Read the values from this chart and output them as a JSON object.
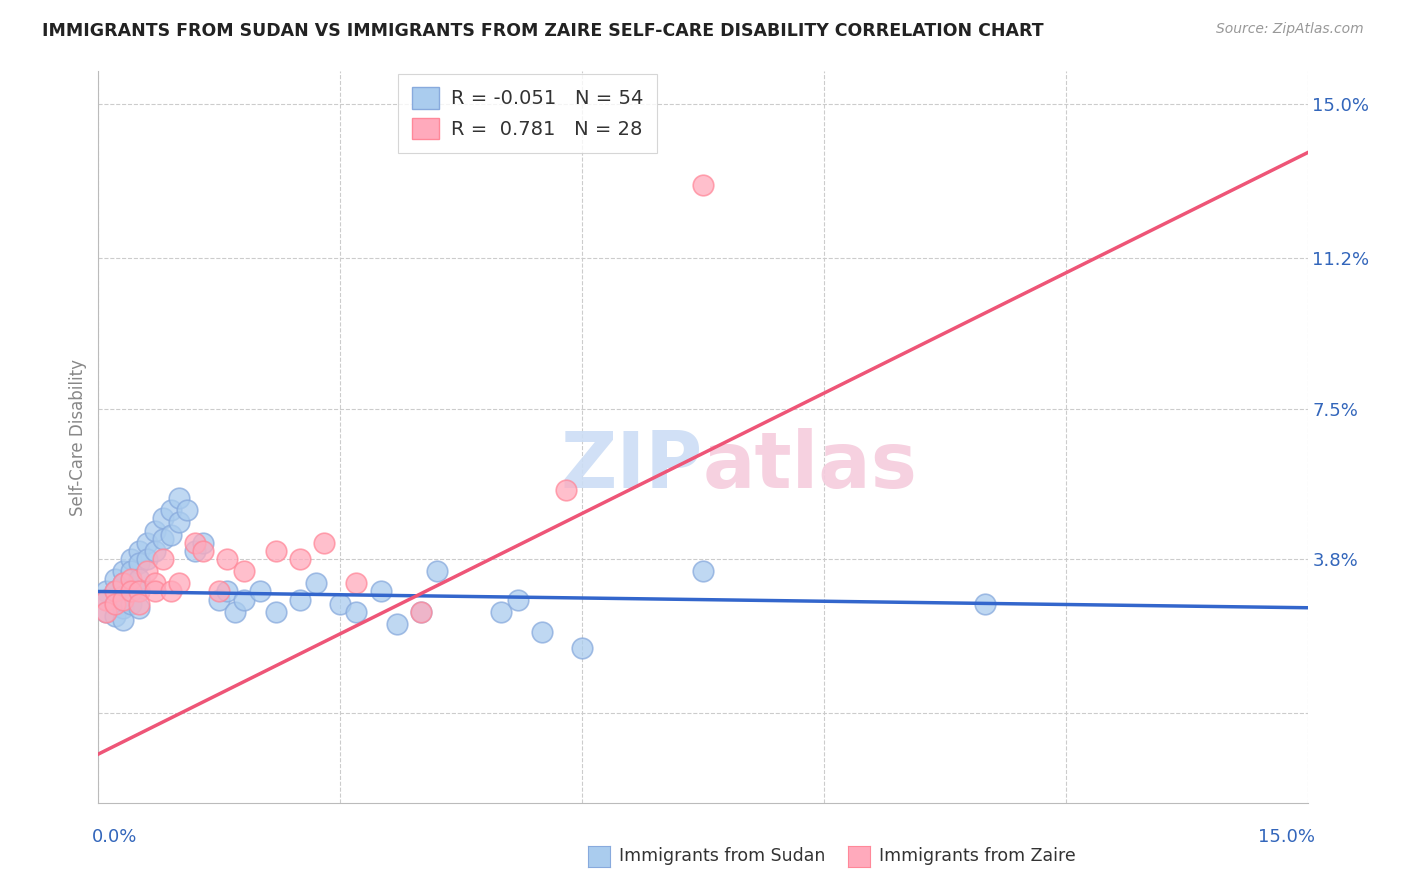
{
  "title": "IMMIGRANTS FROM SUDAN VS IMMIGRANTS FROM ZAIRE SELF-CARE DISABILITY CORRELATION CHART",
  "source": "Source: ZipAtlas.com",
  "ylabel": "Self-Care Disability",
  "ytick_positions": [
    0.0,
    0.038,
    0.075,
    0.112,
    0.15
  ],
  "ytick_labels": [
    "",
    "3.8%",
    "7.5%",
    "11.2%",
    "15.0%"
  ],
  "xmin": 0.0,
  "xmax": 0.15,
  "ymin": -0.022,
  "ymax": 0.158,
  "watermark": "ZIPatlas",
  "legend_sudan_R": "-0.051",
  "legend_sudan_N": "54",
  "legend_zaire_R": "0.781",
  "legend_zaire_N": "28",
  "sudan_color": "#AACCEE",
  "zaire_color": "#FFAABC",
  "sudan_edge_color": "#88AADD",
  "zaire_edge_color": "#FF8899",
  "line_sudan_color": "#3366CC",
  "line_zaire_color": "#EE5577",
  "sudan_line_y0": 0.03,
  "sudan_line_y1": 0.026,
  "zaire_line_y0": -0.01,
  "zaire_line_y1": 0.138,
  "sudan_points_x": [
    0.001,
    0.001,
    0.001,
    0.002,
    0.002,
    0.002,
    0.002,
    0.003,
    0.003,
    0.003,
    0.003,
    0.003,
    0.004,
    0.004,
    0.004,
    0.004,
    0.005,
    0.005,
    0.005,
    0.005,
    0.005,
    0.006,
    0.006,
    0.007,
    0.007,
    0.008,
    0.008,
    0.009,
    0.009,
    0.01,
    0.01,
    0.011,
    0.012,
    0.013,
    0.015,
    0.016,
    0.017,
    0.018,
    0.02,
    0.022,
    0.025,
    0.027,
    0.03,
    0.032,
    0.035,
    0.037,
    0.04,
    0.042,
    0.05,
    0.052,
    0.055,
    0.06,
    0.075,
    0.11
  ],
  "sudan_points_y": [
    0.03,
    0.028,
    0.025,
    0.033,
    0.03,
    0.027,
    0.024,
    0.035,
    0.032,
    0.029,
    0.026,
    0.023,
    0.038,
    0.035,
    0.03,
    0.027,
    0.04,
    0.037,
    0.033,
    0.03,
    0.026,
    0.042,
    0.038,
    0.045,
    0.04,
    0.048,
    0.043,
    0.05,
    0.044,
    0.053,
    0.047,
    0.05,
    0.04,
    0.042,
    0.028,
    0.03,
    0.025,
    0.028,
    0.03,
    0.025,
    0.028,
    0.032,
    0.027,
    0.025,
    0.03,
    0.022,
    0.025,
    0.035,
    0.025,
    0.028,
    0.02,
    0.016,
    0.035,
    0.027
  ],
  "zaire_points_x": [
    0.001,
    0.001,
    0.002,
    0.002,
    0.003,
    0.003,
    0.004,
    0.004,
    0.005,
    0.005,
    0.006,
    0.007,
    0.007,
    0.008,
    0.009,
    0.01,
    0.012,
    0.013,
    0.015,
    0.016,
    0.018,
    0.022,
    0.025,
    0.028,
    0.032,
    0.04,
    0.058,
    0.075
  ],
  "zaire_points_y": [
    0.028,
    0.025,
    0.03,
    0.027,
    0.032,
    0.028,
    0.033,
    0.03,
    0.03,
    0.027,
    0.035,
    0.032,
    0.03,
    0.038,
    0.03,
    0.032,
    0.042,
    0.04,
    0.03,
    0.038,
    0.035,
    0.04,
    0.038,
    0.042,
    0.032,
    0.025,
    0.055,
    0.13
  ]
}
